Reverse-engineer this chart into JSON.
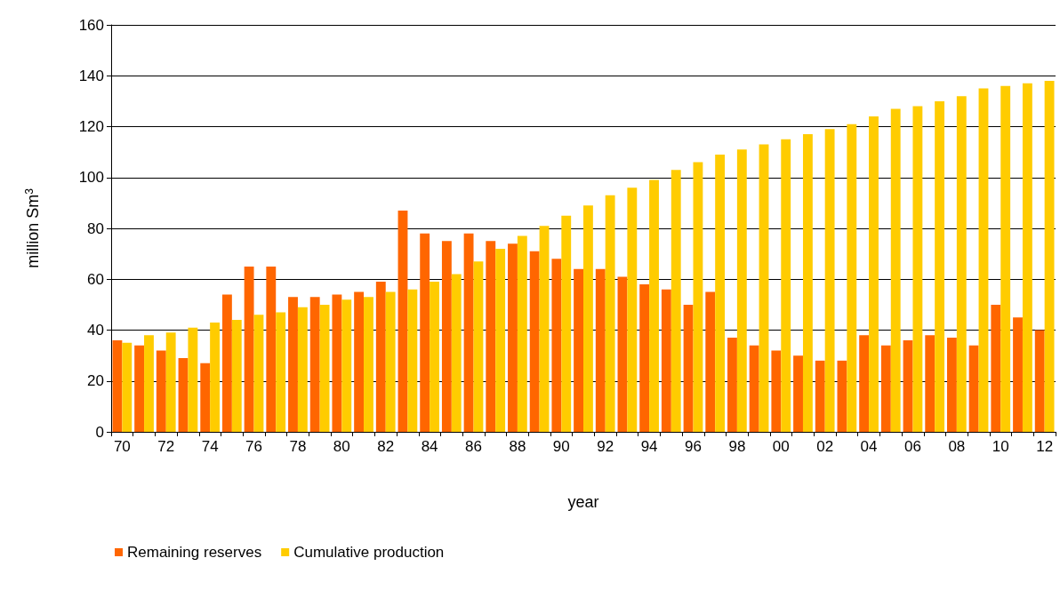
{
  "chart_data": {
    "type": "bar",
    "xlabel": "year",
    "ylabel": "million Sm$^{3}$",
    "categories": [
      "70",
      null,
      "72",
      null,
      "74",
      null,
      "76",
      null,
      "78",
      null,
      "80",
      null,
      "82",
      null,
      "84",
      null,
      "86",
      null,
      "88",
      null,
      "90",
      null,
      "92",
      null,
      "94",
      null,
      "96",
      null,
      "98",
      null,
      "00",
      null,
      "02",
      null,
      "04",
      null,
      "06",
      null,
      "08",
      null,
      "10",
      null,
      "12"
    ],
    "series": [
      {
        "name": "Remaining reserves",
        "color": "#ff6600",
        "values": [
          36,
          34,
          32,
          29,
          27,
          54,
          65,
          65,
          53,
          53,
          54,
          55,
          59,
          87,
          78,
          75,
          78,
          75,
          74,
          71,
          68,
          64,
          64,
          61,
          58,
          56,
          50,
          55,
          37,
          34,
          32,
          30,
          28,
          28,
          38,
          34,
          36,
          38,
          37,
          34,
          50,
          45,
          40
        ]
      },
      {
        "name": "Cumulative production",
        "color": "#ffcc00",
        "values": [
          35,
          38,
          39,
          41,
          43,
          44,
          46,
          47,
          49,
          50,
          52,
          53,
          55,
          56,
          59,
          62,
          67,
          72,
          77,
          81,
          85,
          89,
          93,
          96,
          99,
          103,
          106,
          109,
          111,
          113,
          115,
          117,
          119,
          121,
          124,
          127,
          128,
          130,
          132,
          135,
          136,
          137,
          138
        ]
      }
    ],
    "ylim": [
      0,
      160
    ],
    "yticks": [
      0,
      20,
      40,
      60,
      80,
      100,
      120,
      140,
      160
    ],
    "grid": "y",
    "legend": "bottom left"
  }
}
